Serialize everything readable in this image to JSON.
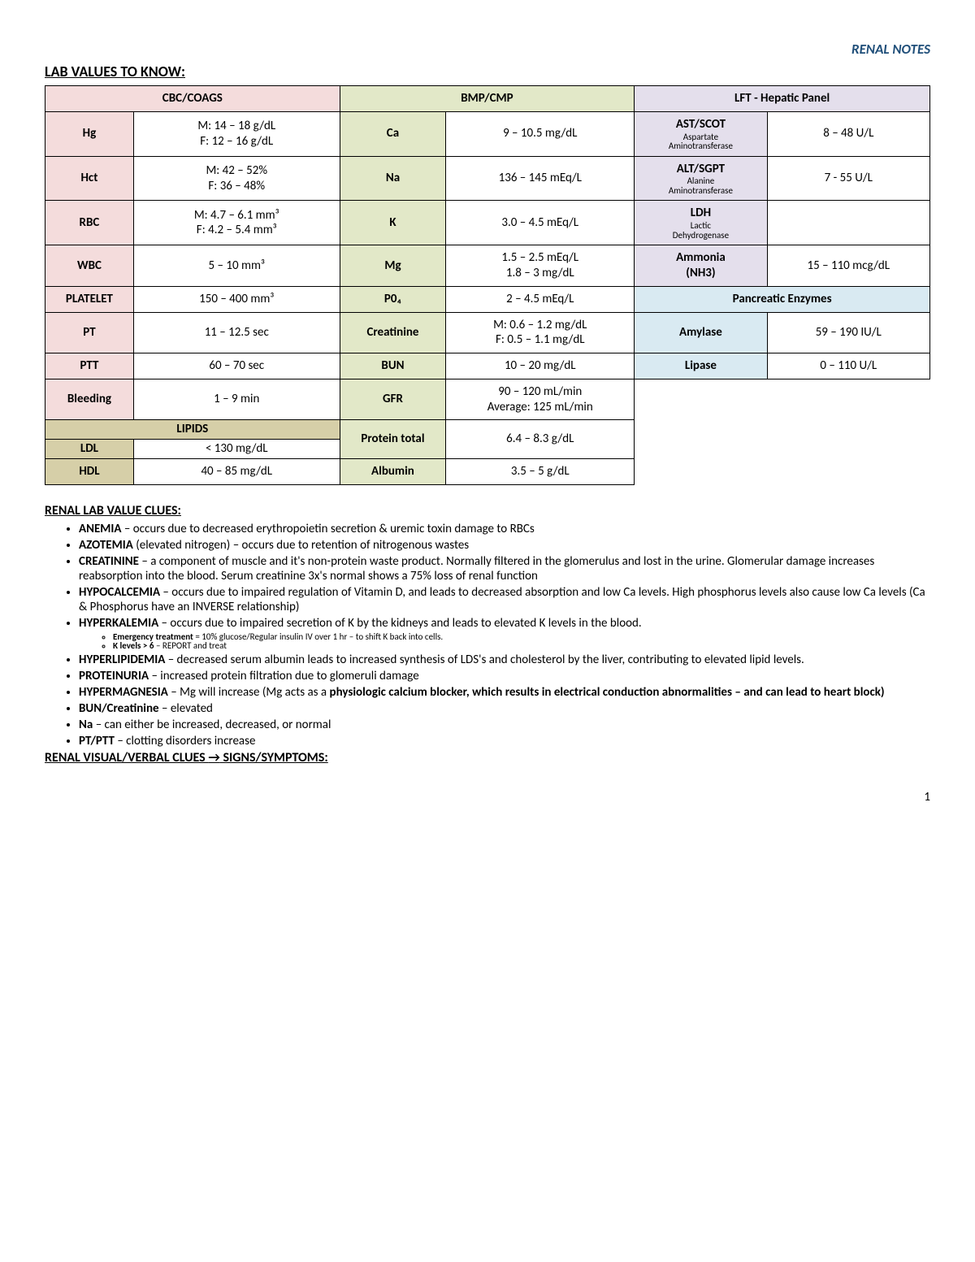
{
  "header": {
    "right": "RENAL NOTES",
    "title": "LAB VALUES TO KNOW:"
  },
  "colors": {
    "pink": "#f4dcdc",
    "green": "#e2e8c8",
    "lav": "#e4dfec",
    "blue": "#d9eaf2",
    "tan": "#d6cfa8"
  },
  "col_headers": {
    "c1": "CBC/COAGS",
    "c2": "BMP/CMP",
    "c3": "LFT - Hepatic Panel"
  },
  "cbc": {
    "hg": {
      "l": "Hg",
      "v": "M: 14 – 18 g/dL\nF: 12 – 16 g/dL"
    },
    "hct": {
      "l": "Hct",
      "v": "M: 42 – 52%\nF: 36 – 48%"
    },
    "rbc": {
      "l": "RBC",
      "v": "M: 4.7 – 6.1 mm³\nF: 4.2 – 5.4 mm³"
    },
    "wbc": {
      "l": "WBC",
      "v": "5 – 10 mm³"
    },
    "plt": {
      "l": "PLATELET",
      "v": "150 – 400 mm³"
    },
    "pt": {
      "l": "PT",
      "v": "11 – 12.5 sec"
    },
    "ptt": {
      "l": "PTT",
      "v": "60 – 70 sec"
    },
    "bld": {
      "l": "Bleeding",
      "v": "1 – 9 min"
    }
  },
  "lipids": {
    "hdr": "LIPIDS",
    "ldl": {
      "l": "LDL",
      "v": "< 130 mg/dL"
    },
    "hdl": {
      "l": "HDL",
      "v": "40 – 85 mg/dL"
    }
  },
  "bmp": {
    "ca": {
      "l": "Ca",
      "v": "9 – 10.5 mg/dL"
    },
    "na": {
      "l": "Na",
      "v": "136 – 145 mEq/L"
    },
    "k": {
      "l": "K",
      "v": "3.0 – 4.5 mEq/L"
    },
    "mg": {
      "l": "Mg",
      "v": "1.5 – 2.5 mEq/L\n1.8 – 3 mg/dL"
    },
    "po4": {
      "l": "P0₄",
      "v": "2 – 4.5 mEq/L"
    },
    "cr": {
      "l": "Creatinine",
      "v": "M: 0.6 – 1.2 mg/dL\nF: 0.5 – 1.1 mg/dL"
    },
    "bun": {
      "l": "BUN",
      "v": "10 – 20 mg/dL"
    },
    "gfr": {
      "l": "GFR",
      "v": "90 – 120 mL/min\nAverage: 125 mL/min"
    },
    "pro": {
      "l": "Protein total",
      "v": "6.4 – 8.3 g/dL"
    },
    "alb": {
      "l": "Albumin",
      "v": "3.5 – 5 g/dL"
    }
  },
  "lft": {
    "ast": {
      "l": "AST/SCOT",
      "s": "Aspartate\nAminotransferase",
      "v": "8 – 48 U/L"
    },
    "alt": {
      "l": "ALT/SGPT",
      "s": "Alanine\nAminotransferase",
      "v": "7 - 55 U/L"
    },
    "ldh": {
      "l": "LDH",
      "s": "Lactic\nDehydrogenase",
      "v": ""
    },
    "nh3": {
      "l": "Ammonia\n(NH3)",
      "v": "15 – 110 mcg/dL"
    }
  },
  "panc": {
    "hdr": "Pancreatic Enzymes",
    "amy": {
      "l": "Amylase",
      "v": "59 – 190 IU/L"
    },
    "lip": {
      "l": "Lipase",
      "v": "0 – 110 U/L"
    }
  },
  "clues_title": "RENAL LAB VALUE CLUES:",
  "clues": [
    {
      "b": "ANEMIA",
      "t": " – occurs due to decreased erythropoietin secretion & uremic toxin damage to RBCs"
    },
    {
      "b": "AZOTEMIA",
      "t": " (elevated nitrogen) – occurs due to retention of nitrogenous wastes"
    },
    {
      "b": "CREATININE",
      "t": " – a component of muscle and it's non-protein waste product.  Normally filtered in the glomerulus and lost in the urine.  Glomerular damage increases reabsorption into the blood.  Serum creatinine 3x's normal shows a 75% loss of renal function"
    },
    {
      "b": "HYPOCALCEMIA",
      "t": " – occurs due to impaired regulation of Vitamin D, and leads to decreased absorption and low Ca levels.  High phosphorus levels also cause low Ca levels (Ca & Phosphorus have an INVERSE relationship)"
    },
    {
      "b": "HYPERKALEMIA",
      "t": " – occurs due to impaired secretion of K by the kidneys and leads to elevated K levels in the blood.",
      "sub": [
        {
          "b": "Emergency treatment",
          "t": " = 10% glucose/Regular insulin IV over 1 hr – to shift K back into cells."
        },
        {
          "b": "K levels > 6",
          "t": " – REPORT and treat"
        }
      ]
    },
    {
      "b": "HYPERLIPIDEMIA",
      "t": " – decreased serum albumin leads to increased synthesis of LDS's and cholesterol by the liver, contributing to elevated lipid levels."
    },
    {
      "b": "PROTEINURIA",
      "t": " – increased protein filtration due to glomeruli damage"
    },
    {
      "b": "HYPERMAGNESIA",
      "t": " – Mg will increase (Mg acts as a ",
      "b2": "physiologic calcium blocker, which results in electrical conduction abnormalities – and can lead to heart block)"
    },
    {
      "b": "BUN/Creatinine",
      "t": " – elevated"
    },
    {
      "b": "Na",
      "t": " – can either be increased, decreased, or normal"
    },
    {
      "b": "PT/PTT",
      "t": " – clotting disorders increase"
    }
  ],
  "signs_title_a": "RENAL VISUAL/VERBAL CLUES ",
  "signs_title_b": " SIGNS/SYMPTOMS:",
  "page": "1"
}
